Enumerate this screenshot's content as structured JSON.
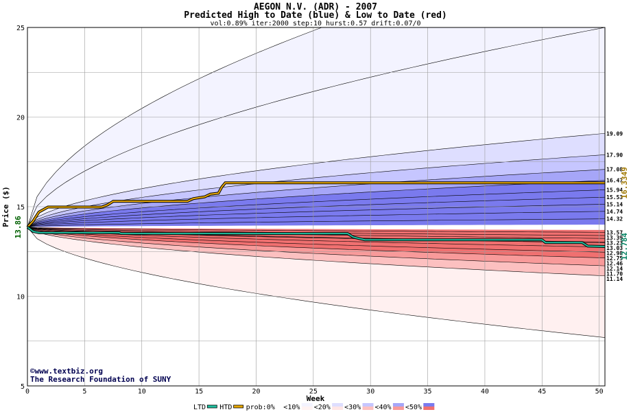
{
  "chart_data": {
    "type": "area",
    "title": "AEGON N.V. (ADR) - 2007",
    "subtitle": "Predicted High to Date (blue) &  Low to Date (red)",
    "params": "vol:0.89% iter:2000 step:10 hurst:0.57 drift:0.07/0",
    "xlabel": "Week",
    "ylabel": "Price ($)",
    "xlim": [
      0,
      50.5
    ],
    "ylim": [
      5,
      25
    ],
    "x_ticks": [
      0,
      5,
      10,
      15,
      20,
      25,
      30,
      35,
      40,
      45,
      50
    ],
    "y_ticks": [
      5,
      10,
      15,
      20,
      25
    ],
    "start_price": 13.86,
    "start_price_label": "13.86",
    "grid": true,
    "bands": [
      {
        "name": "<10%",
        "side": "high",
        "final": 25.0,
        "color": "#f3f3ff"
      },
      {
        "name": "<20%",
        "side": "high",
        "final": 19.09,
        "color": "#dedeff"
      },
      {
        "name": "<30%",
        "side": "high",
        "final": 17.9,
        "color": "#c6c6ff"
      },
      {
        "name": "<40%",
        "side": "high",
        "final": 17.08,
        "color": "#a6a6f8"
      },
      {
        "name": "<50%",
        "side": "high",
        "final": 16.47,
        "color": "#7a7aee"
      },
      {
        "name": "<50%",
        "side": "low",
        "final": 12.14,
        "color": "#f07070"
      },
      {
        "name": "<40%",
        "side": "low",
        "final": 11.7,
        "color": "#f89a9a"
      },
      {
        "name": "<30%",
        "side": "low",
        "final": 11.14,
        "color": "#fcc0c0"
      },
      {
        "name": "<20%",
        "side": "low",
        "final": 7.7,
        "color": "#ffe6e6"
      },
      {
        "name": "<10%",
        "side": "low",
        "final": 7.7,
        "color": "#fff3f3"
      }
    ],
    "high_contours": [
      25.0,
      19.09,
      17.9,
      17.08,
      16.47,
      15.94,
      15.53,
      15.14,
      14.74,
      14.32
    ],
    "low_contours": [
      13.57,
      13.39,
      13.23,
      13.03,
      12.98,
      12.75,
      12.46,
      12.14,
      11.7,
      11.14,
      7.7
    ],
    "right_labels": [
      "19.09",
      "17.90",
      "17.08",
      "16.47",
      "15.94",
      "15.53",
      "15.14",
      "14.74",
      "14.32",
      "13.57",
      "13.39",
      "13.23",
      "13.03",
      "12.98",
      "12.75",
      "12.46",
      "12.14",
      "11.70",
      "11.14"
    ],
    "right_label_values": [
      19.09,
      17.9,
      17.08,
      16.47,
      15.94,
      15.53,
      15.14,
      14.74,
      14.32,
      13.57,
      13.39,
      13.23,
      13.03,
      12.98,
      12.75,
      12.46,
      12.14,
      11.7,
      11.14
    ],
    "htd": {
      "name": "HTD",
      "color": "#e8a800",
      "final_label": "16.3349",
      "points": [
        [
          0,
          13.86
        ],
        [
          0.5,
          14.2
        ],
        [
          1.0,
          14.7
        ],
        [
          1.8,
          14.98
        ],
        [
          6.5,
          14.98
        ],
        [
          7.0,
          15.1
        ],
        [
          7.5,
          15.3
        ],
        [
          14.0,
          15.3
        ],
        [
          14.5,
          15.45
        ],
        [
          15.5,
          15.55
        ],
        [
          16.0,
          15.7
        ],
        [
          16.7,
          15.75
        ],
        [
          17.0,
          16.1
        ],
        [
          17.3,
          16.33
        ],
        [
          50.5,
          16.33
        ]
      ]
    },
    "ltd": {
      "name": "LTD",
      "color": "#20c0a0",
      "final_label": "12.784",
      "points": [
        [
          0,
          13.86
        ],
        [
          0.5,
          13.62
        ],
        [
          1.0,
          13.55
        ],
        [
          8.0,
          13.55
        ],
        [
          8.2,
          13.5
        ],
        [
          28.0,
          13.5
        ],
        [
          28.5,
          13.3
        ],
        [
          29.5,
          13.15
        ],
        [
          45.0,
          13.15
        ],
        [
          45.3,
          13.0
        ],
        [
          48.5,
          13.0
        ],
        [
          49.0,
          12.8
        ],
        [
          50.5,
          12.78
        ]
      ]
    },
    "legend": [
      "LTD",
      "HTD",
      "prob:0%",
      "<10%",
      "<20%",
      "<30%",
      "<40%",
      "<50%"
    ],
    "legend_colors": [
      "#20c0a0",
      "#e8a800",
      "#ffffff",
      "#f3f3ff",
      "#dedeff",
      "#c6c6ff",
      "#a6a6f8",
      "#7a7aee"
    ],
    "legend_colors_low": [
      "",
      "",
      "",
      "#fff3f3",
      "#ffe6e6",
      "#fcc0c0",
      "#f89a9a",
      "#f07070"
    ]
  },
  "credits": {
    "line1": "©www.textbiz.org",
    "line2": "The Research Foundation of SUNY"
  }
}
